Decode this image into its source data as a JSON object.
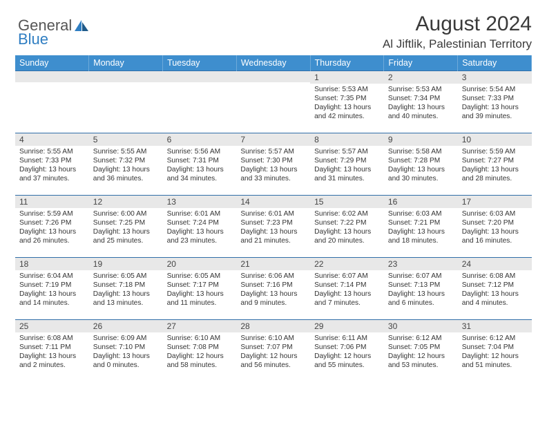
{
  "brand": {
    "name_a": "General",
    "name_b": "Blue"
  },
  "title": "August 2024",
  "location": "Al Jiftlik, Palestinian Territory",
  "colors": {
    "header_bg": "#3e8ece",
    "row_divider": "#2f6ea8",
    "daynum_bg": "#e8e8e8",
    "brand_blue": "#2f7ec2",
    "text": "#333333"
  },
  "typography": {
    "title_fontsize": 30,
    "location_fontsize": 17,
    "header_fontsize": 12.5,
    "daynum_fontsize": 12,
    "detail_fontsize": 10.2
  },
  "columns": [
    "Sunday",
    "Monday",
    "Tuesday",
    "Wednesday",
    "Thursday",
    "Friday",
    "Saturday"
  ],
  "weeks": [
    [
      {
        "day": "",
        "sunrise": "",
        "sunset": "",
        "daylight": ""
      },
      {
        "day": "",
        "sunrise": "",
        "sunset": "",
        "daylight": ""
      },
      {
        "day": "",
        "sunrise": "",
        "sunset": "",
        "daylight": ""
      },
      {
        "day": "",
        "sunrise": "",
        "sunset": "",
        "daylight": ""
      },
      {
        "day": "1",
        "sunrise": "Sunrise: 5:53 AM",
        "sunset": "Sunset: 7:35 PM",
        "daylight": "Daylight: 13 hours and 42 minutes."
      },
      {
        "day": "2",
        "sunrise": "Sunrise: 5:53 AM",
        "sunset": "Sunset: 7:34 PM",
        "daylight": "Daylight: 13 hours and 40 minutes."
      },
      {
        "day": "3",
        "sunrise": "Sunrise: 5:54 AM",
        "sunset": "Sunset: 7:33 PM",
        "daylight": "Daylight: 13 hours and 39 minutes."
      }
    ],
    [
      {
        "day": "4",
        "sunrise": "Sunrise: 5:55 AM",
        "sunset": "Sunset: 7:33 PM",
        "daylight": "Daylight: 13 hours and 37 minutes."
      },
      {
        "day": "5",
        "sunrise": "Sunrise: 5:55 AM",
        "sunset": "Sunset: 7:32 PM",
        "daylight": "Daylight: 13 hours and 36 minutes."
      },
      {
        "day": "6",
        "sunrise": "Sunrise: 5:56 AM",
        "sunset": "Sunset: 7:31 PM",
        "daylight": "Daylight: 13 hours and 34 minutes."
      },
      {
        "day": "7",
        "sunrise": "Sunrise: 5:57 AM",
        "sunset": "Sunset: 7:30 PM",
        "daylight": "Daylight: 13 hours and 33 minutes."
      },
      {
        "day": "8",
        "sunrise": "Sunrise: 5:57 AM",
        "sunset": "Sunset: 7:29 PM",
        "daylight": "Daylight: 13 hours and 31 minutes."
      },
      {
        "day": "9",
        "sunrise": "Sunrise: 5:58 AM",
        "sunset": "Sunset: 7:28 PM",
        "daylight": "Daylight: 13 hours and 30 minutes."
      },
      {
        "day": "10",
        "sunrise": "Sunrise: 5:59 AM",
        "sunset": "Sunset: 7:27 PM",
        "daylight": "Daylight: 13 hours and 28 minutes."
      }
    ],
    [
      {
        "day": "11",
        "sunrise": "Sunrise: 5:59 AM",
        "sunset": "Sunset: 7:26 PM",
        "daylight": "Daylight: 13 hours and 26 minutes."
      },
      {
        "day": "12",
        "sunrise": "Sunrise: 6:00 AM",
        "sunset": "Sunset: 7:25 PM",
        "daylight": "Daylight: 13 hours and 25 minutes."
      },
      {
        "day": "13",
        "sunrise": "Sunrise: 6:01 AM",
        "sunset": "Sunset: 7:24 PM",
        "daylight": "Daylight: 13 hours and 23 minutes."
      },
      {
        "day": "14",
        "sunrise": "Sunrise: 6:01 AM",
        "sunset": "Sunset: 7:23 PM",
        "daylight": "Daylight: 13 hours and 21 minutes."
      },
      {
        "day": "15",
        "sunrise": "Sunrise: 6:02 AM",
        "sunset": "Sunset: 7:22 PM",
        "daylight": "Daylight: 13 hours and 20 minutes."
      },
      {
        "day": "16",
        "sunrise": "Sunrise: 6:03 AM",
        "sunset": "Sunset: 7:21 PM",
        "daylight": "Daylight: 13 hours and 18 minutes."
      },
      {
        "day": "17",
        "sunrise": "Sunrise: 6:03 AM",
        "sunset": "Sunset: 7:20 PM",
        "daylight": "Daylight: 13 hours and 16 minutes."
      }
    ],
    [
      {
        "day": "18",
        "sunrise": "Sunrise: 6:04 AM",
        "sunset": "Sunset: 7:19 PM",
        "daylight": "Daylight: 13 hours and 14 minutes."
      },
      {
        "day": "19",
        "sunrise": "Sunrise: 6:05 AM",
        "sunset": "Sunset: 7:18 PM",
        "daylight": "Daylight: 13 hours and 13 minutes."
      },
      {
        "day": "20",
        "sunrise": "Sunrise: 6:05 AM",
        "sunset": "Sunset: 7:17 PM",
        "daylight": "Daylight: 13 hours and 11 minutes."
      },
      {
        "day": "21",
        "sunrise": "Sunrise: 6:06 AM",
        "sunset": "Sunset: 7:16 PM",
        "daylight": "Daylight: 13 hours and 9 minutes."
      },
      {
        "day": "22",
        "sunrise": "Sunrise: 6:07 AM",
        "sunset": "Sunset: 7:14 PM",
        "daylight": "Daylight: 13 hours and 7 minutes."
      },
      {
        "day": "23",
        "sunrise": "Sunrise: 6:07 AM",
        "sunset": "Sunset: 7:13 PM",
        "daylight": "Daylight: 13 hours and 6 minutes."
      },
      {
        "day": "24",
        "sunrise": "Sunrise: 6:08 AM",
        "sunset": "Sunset: 7:12 PM",
        "daylight": "Daylight: 13 hours and 4 minutes."
      }
    ],
    [
      {
        "day": "25",
        "sunrise": "Sunrise: 6:08 AM",
        "sunset": "Sunset: 7:11 PM",
        "daylight": "Daylight: 13 hours and 2 minutes."
      },
      {
        "day": "26",
        "sunrise": "Sunrise: 6:09 AM",
        "sunset": "Sunset: 7:10 PM",
        "daylight": "Daylight: 13 hours and 0 minutes."
      },
      {
        "day": "27",
        "sunrise": "Sunrise: 6:10 AM",
        "sunset": "Sunset: 7:08 PM",
        "daylight": "Daylight: 12 hours and 58 minutes."
      },
      {
        "day": "28",
        "sunrise": "Sunrise: 6:10 AM",
        "sunset": "Sunset: 7:07 PM",
        "daylight": "Daylight: 12 hours and 56 minutes."
      },
      {
        "day": "29",
        "sunrise": "Sunrise: 6:11 AM",
        "sunset": "Sunset: 7:06 PM",
        "daylight": "Daylight: 12 hours and 55 minutes."
      },
      {
        "day": "30",
        "sunrise": "Sunrise: 6:12 AM",
        "sunset": "Sunset: 7:05 PM",
        "daylight": "Daylight: 12 hours and 53 minutes."
      },
      {
        "day": "31",
        "sunrise": "Sunrise: 6:12 AM",
        "sunset": "Sunset: 7:04 PM",
        "daylight": "Daylight: 12 hours and 51 minutes."
      }
    ]
  ]
}
